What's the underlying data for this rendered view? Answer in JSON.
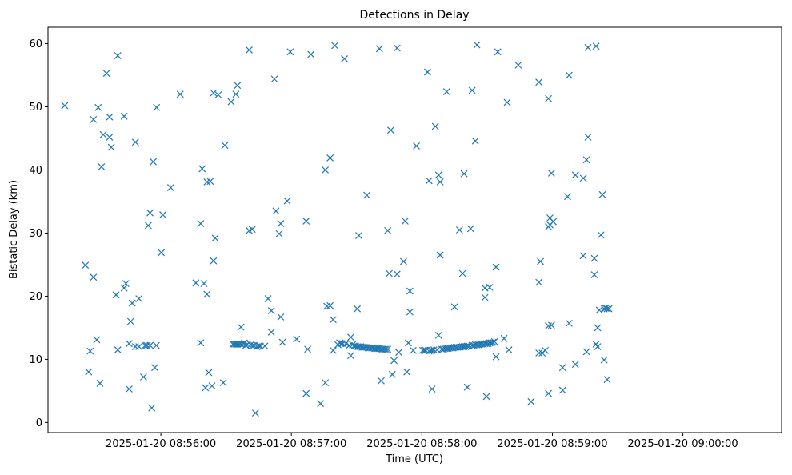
{
  "chart_data": {
    "type": "scatter",
    "title": "Detections in Delay",
    "xlabel": "Time (UTC)",
    "ylabel": "Bistatic Delay (km)",
    "grid": false,
    "legend": "none",
    "marker": "x",
    "color": "#1f77b4",
    "x_tick_labels": [
      "2025-01-20 08:56:00",
      "2025-01-20 08:57:00",
      "2025-01-20 08:58:00",
      "2025-01-20 08:59:00",
      "2025-01-20 09:00:00"
    ],
    "x_ticks": [
      "2025-01-20T08:56:00",
      "2025-01-20T08:57:00",
      "2025-01-20T08:58:00",
      "2025-01-20T08:59:00",
      "2025-01-20T09:00:00"
    ],
    "y_ticks": [
      0,
      10,
      20,
      30,
      40,
      50,
      60
    ],
    "xlim": [
      "2025-01-20T08:55:08.1",
      "2025-01-20T09:00:45.4"
    ],
    "ylim": [
      -1.6,
      62.6
    ],
    "points": [
      [
        "2025-01-20T08:55:15.8",
        50.2
      ],
      [
        "2025-01-20T08:55:25.3",
        24.9
      ],
      [
        "2025-01-20T08:55:26.8",
        8.0
      ],
      [
        "2025-01-20T08:55:27.5",
        11.3
      ],
      [
        "2025-01-20T08:55:29.0",
        48.0
      ],
      [
        "2025-01-20T08:55:29.0",
        23.0
      ],
      [
        "2025-01-20T08:55:30.5",
        13.1
      ],
      [
        "2025-01-20T08:55:31.2",
        49.9
      ],
      [
        "2025-01-20T08:55:32.0",
        6.2
      ],
      [
        "2025-01-20T08:55:32.7",
        40.5
      ],
      [
        "2025-01-20T08:55:33.5",
        45.6
      ],
      [
        "2025-01-20T08:55:35.0",
        55.3
      ],
      [
        "2025-01-20T08:55:36.4",
        48.4
      ],
      [
        "2025-01-20T08:55:36.4",
        45.2
      ],
      [
        "2025-01-20T08:55:37.2",
        43.6
      ],
      [
        "2025-01-20T08:55:39.4",
        20.2
      ],
      [
        "2025-01-20T08:55:40.2",
        58.1
      ],
      [
        "2025-01-20T08:55:40.2",
        11.5
      ],
      [
        "2025-01-20T08:55:43.1",
        48.5
      ],
      [
        "2025-01-20T08:55:43.1",
        21.3
      ],
      [
        "2025-01-20T08:55:43.9",
        22.0
      ],
      [
        "2025-01-20T08:55:45.4",
        5.3
      ],
      [
        "2025-01-20T08:55:45.4",
        12.5
      ],
      [
        "2025-01-20T08:55:46.1",
        16.0
      ],
      [
        "2025-01-20T08:55:46.8",
        18.9
      ],
      [
        "2025-01-20T08:55:48.3",
        44.4
      ],
      [
        "2025-01-20T08:55:48.3",
        12.0
      ],
      [
        "2025-01-20T08:55:49.9",
        19.6
      ],
      [
        "2025-01-20T08:55:49.9",
        12.0
      ],
      [
        "2025-01-20T08:55:52.0",
        7.2
      ],
      [
        "2025-01-20T08:55:52.8",
        12.2
      ],
      [
        "2025-01-20T08:55:53.5",
        12.2
      ],
      [
        "2025-01-20T08:55:54.2",
        31.2
      ],
      [
        "2025-01-20T08:55:55.0",
        33.2
      ],
      [
        "2025-01-20T08:55:55.0",
        12.2
      ],
      [
        "2025-01-20T08:55:55.8",
        2.3
      ],
      [
        "2025-01-20T08:55:56.5",
        41.3
      ],
      [
        "2025-01-20T08:55:57.2",
        8.7
      ],
      [
        "2025-01-20T08:55:57.9",
        12.2
      ],
      [
        "2025-01-20T08:55:58.0",
        49.9
      ],
      [
        "2025-01-20T08:56:00.2",
        26.9
      ],
      [
        "2025-01-20T08:56:00.9",
        32.9
      ],
      [
        "2025-01-20T08:56:04.5",
        37.2
      ],
      [
        "2025-01-20T08:56:08.9",
        52.0
      ],
      [
        "2025-01-20T08:56:16.1",
        22.1
      ],
      [
        "2025-01-20T08:56:18.3",
        31.5
      ],
      [
        "2025-01-20T08:56:18.3",
        12.6
      ],
      [
        "2025-01-20T08:56:19.0",
        40.2
      ],
      [
        "2025-01-20T08:56:19.8",
        22.0
      ],
      [
        "2025-01-20T08:56:20.5",
        5.5
      ],
      [
        "2025-01-20T08:56:21.2",
        38.1
      ],
      [
        "2025-01-20T08:56:21.2",
        20.3
      ],
      [
        "2025-01-20T08:56:22.0",
        7.9
      ],
      [
        "2025-01-20T08:56:22.7",
        38.2
      ],
      [
        "2025-01-20T08:56:23.5",
        5.8
      ],
      [
        "2025-01-20T08:56:24.2",
        52.2
      ],
      [
        "2025-01-20T08:56:24.2",
        25.6
      ],
      [
        "2025-01-20T08:56:25.0",
        29.2
      ],
      [
        "2025-01-20T08:56:26.4",
        51.9
      ],
      [
        "2025-01-20T08:56:28.7",
        6.3
      ],
      [
        "2025-01-20T08:56:29.4",
        43.9
      ],
      [
        "2025-01-20T08:56:32.3",
        50.8
      ],
      [
        "2025-01-20T08:56:33.1",
        12.4
      ],
      [
        "2025-01-20T08:56:33.8",
        12.4
      ],
      [
        "2025-01-20T08:56:34.5",
        52.0
      ],
      [
        "2025-01-20T08:56:34.5",
        12.4
      ],
      [
        "2025-01-20T08:56:35.2",
        53.4
      ],
      [
        "2025-01-20T08:56:35.2",
        12.4
      ],
      [
        "2025-01-20T08:56:36.0",
        12.4
      ],
      [
        "2025-01-20T08:56:36.8",
        12.4
      ],
      [
        "2025-01-20T08:56:36.8",
        15.1
      ],
      [
        "2025-01-20T08:56:37.6",
        12.4
      ],
      [
        "2025-01-20T08:56:38.4",
        12.6
      ],
      [
        "2025-01-20T08:56:39.1",
        12.2
      ],
      [
        "2025-01-20T08:56:39.8",
        12.4
      ],
      [
        "2025-01-20T08:56:40.6",
        59.0
      ],
      [
        "2025-01-20T08:56:40.6",
        30.4
      ],
      [
        "2025-01-20T08:56:41.3",
        12.3
      ],
      [
        "2025-01-20T08:56:42.0",
        30.6
      ],
      [
        "2025-01-20T08:56:42.0",
        12.2
      ],
      [
        "2025-01-20T08:56:42.8",
        12.2
      ],
      [
        "2025-01-20T08:56:43.5",
        1.5
      ],
      [
        "2025-01-20T08:56:44.2",
        12.0
      ],
      [
        "2025-01-20T08:56:45.0",
        12.1
      ],
      [
        "2025-01-20T08:56:45.7",
        12.1
      ],
      [
        "2025-01-20T08:56:47.8",
        12.1
      ],
      [
        "2025-01-20T08:56:49.3",
        19.6
      ],
      [
        "2025-01-20T08:56:50.8",
        17.7
      ],
      [
        "2025-01-20T08:56:50.8",
        14.3
      ],
      [
        "2025-01-20T08:56:52.2",
        54.4
      ],
      [
        "2025-01-20T08:56:52.9",
        33.5
      ],
      [
        "2025-01-20T08:56:54.4",
        29.9
      ],
      [
        "2025-01-20T08:56:55.1",
        31.5
      ],
      [
        "2025-01-20T08:56:55.1",
        16.7
      ],
      [
        "2025-01-20T08:56:55.9",
        12.7
      ],
      [
        "2025-01-20T08:56:58.1",
        35.1
      ],
      [
        "2025-01-20T08:56:59.5",
        58.7
      ],
      [
        "2025-01-20T08:57:02.4",
        13.2
      ],
      [
        "2025-01-20T08:57:06.8",
        31.9
      ],
      [
        "2025-01-20T08:57:06.8",
        4.6
      ],
      [
        "2025-01-20T08:57:07.5",
        11.6
      ],
      [
        "2025-01-20T08:57:09.0",
        58.3
      ],
      [
        "2025-01-20T08:57:13.4",
        3.0
      ],
      [
        "2025-01-20T08:57:15.6",
        40.0
      ],
      [
        "2025-01-20T08:57:15.6",
        6.3
      ],
      [
        "2025-01-20T08:57:16.3",
        18.4
      ],
      [
        "2025-01-20T08:57:17.8",
        41.9
      ],
      [
        "2025-01-20T08:57:17.8",
        18.5
      ],
      [
        "2025-01-20T08:57:19.2",
        16.3
      ],
      [
        "2025-01-20T08:57:19.2",
        11.4
      ],
      [
        "2025-01-20T08:57:20.0",
        59.7
      ],
      [
        "2025-01-20T08:57:21.4",
        12.3
      ],
      [
        "2025-01-20T08:57:22.2",
        12.6
      ],
      [
        "2025-01-20T08:57:22.9",
        12.5
      ],
      [
        "2025-01-20T08:57:23.6",
        12.5
      ],
      [
        "2025-01-20T08:57:24.4",
        57.6
      ],
      [
        "2025-01-20T08:57:25.1",
        12.5
      ],
      [
        "2025-01-20T08:57:26.6",
        12.2
      ],
      [
        "2025-01-20T08:57:27.3",
        13.5
      ],
      [
        "2025-01-20T08:57:27.3",
        10.6
      ],
      [
        "2025-01-20T08:57:28.1",
        12.3
      ],
      [
        "2025-01-20T08:57:28.8",
        12.1
      ],
      [
        "2025-01-20T08:57:29.5",
        12.1
      ],
      [
        "2025-01-20T08:57:30.3",
        12.0
      ],
      [
        "2025-01-20T08:57:30.3",
        18.0
      ],
      [
        "2025-01-20T08:57:31.0",
        29.6
      ],
      [
        "2025-01-20T08:57:31.0",
        12.0
      ],
      [
        "2025-01-20T08:57:31.8",
        12.0
      ],
      [
        "2025-01-20T08:57:32.5",
        11.9
      ],
      [
        "2025-01-20T08:57:33.2",
        11.9
      ],
      [
        "2025-01-20T08:57:33.9",
        11.9
      ],
      [
        "2025-01-20T08:57:34.7",
        36.0
      ],
      [
        "2025-01-20T08:57:34.7",
        11.9
      ],
      [
        "2025-01-20T08:57:35.4",
        11.8
      ],
      [
        "2025-01-20T08:57:36.1",
        11.8
      ],
      [
        "2025-01-20T08:57:36.9",
        11.8
      ],
      [
        "2025-01-20T08:57:37.6",
        11.8
      ],
      [
        "2025-01-20T08:57:38.4",
        11.7
      ],
      [
        "2025-01-20T08:57:39.1",
        11.7
      ],
      [
        "2025-01-20T08:57:39.8",
        11.7
      ],
      [
        "2025-01-20T08:57:40.5",
        59.2
      ],
      [
        "2025-01-20T08:57:40.5",
        11.7
      ],
      [
        "2025-01-20T08:57:41.3",
        11.6
      ],
      [
        "2025-01-20T08:57:41.3",
        6.6
      ],
      [
        "2025-01-20T08:57:42.0",
        11.6
      ],
      [
        "2025-01-20T08:57:42.8",
        11.6
      ],
      [
        "2025-01-20T08:57:43.5",
        11.6
      ],
      [
        "2025-01-20T08:57:44.3",
        30.4
      ],
      [
        "2025-01-20T08:57:44.3",
        11.6
      ],
      [
        "2025-01-20T08:57:45.0",
        23.6
      ],
      [
        "2025-01-20T08:57:45.7",
        46.3
      ],
      [
        "2025-01-20T08:57:46.4",
        7.6
      ],
      [
        "2025-01-20T08:57:47.2",
        9.8
      ],
      [
        "2025-01-20T08:57:48.6",
        59.3
      ],
      [
        "2025-01-20T08:57:48.6",
        23.5
      ],
      [
        "2025-01-20T08:57:49.4",
        11.1
      ],
      [
        "2025-01-20T08:57:51.6",
        25.5
      ],
      [
        "2025-01-20T08:57:52.3",
        31.9
      ],
      [
        "2025-01-20T08:57:53.1",
        8.0
      ],
      [
        "2025-01-20T08:57:53.8",
        12.6
      ],
      [
        "2025-01-20T08:57:54.5",
        20.8
      ],
      [
        "2025-01-20T08:57:54.5",
        17.5
      ],
      [
        "2025-01-20T08:57:56.0",
        11.4
      ],
      [
        "2025-01-20T08:57:57.5",
        43.8
      ],
      [
        "2025-01-20T08:58:00.4",
        11.4
      ],
      [
        "2025-01-20T08:58:01.1",
        11.4
      ],
      [
        "2025-01-20T08:58:01.8",
        11.4
      ],
      [
        "2025-01-20T08:58:02.6",
        55.5
      ],
      [
        "2025-01-20T08:58:03.3",
        11.3
      ],
      [
        "2025-01-20T08:58:03.3",
        38.3
      ],
      [
        "2025-01-20T08:58:04.0",
        11.4
      ],
      [
        "2025-01-20T08:58:04.7",
        11.4
      ],
      [
        "2025-01-20T08:58:04.7",
        5.3
      ],
      [
        "2025-01-20T08:58:05.5",
        11.5
      ],
      [
        "2025-01-20T08:58:06.2",
        46.9
      ],
      [
        "2025-01-20T08:58:07.0",
        11.5
      ],
      [
        "2025-01-20T08:58:07.7",
        13.8
      ],
      [
        "2025-01-20T08:58:07.7",
        39.2
      ],
      [
        "2025-01-20T08:58:08.4",
        38.1
      ],
      [
        "2025-01-20T08:58:08.4",
        26.5
      ],
      [
        "2025-01-20T08:58:09.2",
        11.6
      ],
      [
        "2025-01-20T08:58:09.9",
        11.6
      ],
      [
        "2025-01-20T08:58:10.6",
        11.7
      ],
      [
        "2025-01-20T08:58:11.4",
        52.4
      ],
      [
        "2025-01-20T08:58:11.4",
        11.7
      ],
      [
        "2025-01-20T08:58:12.1",
        11.7
      ],
      [
        "2025-01-20T08:58:12.8",
        11.8
      ],
      [
        "2025-01-20T08:58:13.6",
        11.8
      ],
      [
        "2025-01-20T08:58:14.3",
        11.8
      ],
      [
        "2025-01-20T08:58:15.0",
        11.9
      ],
      [
        "2025-01-20T08:58:15.0",
        18.3
      ],
      [
        "2025-01-20T08:58:15.8",
        11.9
      ],
      [
        "2025-01-20T08:58:16.5",
        11.9
      ],
      [
        "2025-01-20T08:58:17.3",
        30.5
      ],
      [
        "2025-01-20T08:58:17.3",
        11.9
      ],
      [
        "2025-01-20T08:58:18.0",
        12.0
      ],
      [
        "2025-01-20T08:58:18.7",
        23.6
      ],
      [
        "2025-01-20T08:58:18.7",
        12.0
      ],
      [
        "2025-01-20T08:58:19.4",
        39.4
      ],
      [
        "2025-01-20T08:58:19.4",
        12.0
      ],
      [
        "2025-01-20T08:58:20.2",
        12.0
      ],
      [
        "2025-01-20T08:58:20.9",
        5.6
      ],
      [
        "2025-01-20T08:58:20.9",
        12.1
      ],
      [
        "2025-01-20T08:58:21.7",
        12.1
      ],
      [
        "2025-01-20T08:58:22.4",
        30.7
      ],
      [
        "2025-01-20T08:58:23.1",
        52.6
      ],
      [
        "2025-01-20T08:58:23.1",
        12.2
      ],
      [
        "2025-01-20T08:58:23.9",
        12.2
      ],
      [
        "2025-01-20T08:58:24.6",
        44.6
      ],
      [
        "2025-01-20T08:58:24.6",
        12.3
      ],
      [
        "2025-01-20T08:58:25.3",
        59.8
      ],
      [
        "2025-01-20T08:58:25.3",
        12.3
      ],
      [
        "2025-01-20T08:58:26.1",
        12.3
      ],
      [
        "2025-01-20T08:58:26.8",
        12.4
      ],
      [
        "2025-01-20T08:58:27.5",
        12.4
      ],
      [
        "2025-01-20T08:58:28.3",
        12.4
      ],
      [
        "2025-01-20T08:58:29.0",
        21.3
      ],
      [
        "2025-01-20T08:58:29.0",
        19.8
      ],
      [
        "2025-01-20T08:58:29.0",
        12.5
      ],
      [
        "2025-01-20T08:58:29.7",
        4.1
      ],
      [
        "2025-01-20T08:58:29.7",
        12.5
      ],
      [
        "2025-01-20T08:58:30.5",
        12.5
      ],
      [
        "2025-01-20T08:58:31.2",
        21.4
      ],
      [
        "2025-01-20T08:58:31.2",
        12.6
      ],
      [
        "2025-01-20T08:58:31.9",
        12.6
      ],
      [
        "2025-01-20T08:58:32.7",
        12.7
      ],
      [
        "2025-01-20T08:58:33.4",
        12.8
      ],
      [
        "2025-01-20T08:58:34.1",
        24.6
      ],
      [
        "2025-01-20T08:58:34.1",
        10.4
      ],
      [
        "2025-01-20T08:58:34.9",
        58.7
      ],
      [
        "2025-01-20T08:58:37.8",
        13.3
      ],
      [
        "2025-01-20T08:58:39.2",
        50.7
      ],
      [
        "2025-01-20T08:58:40.0",
        11.5
      ],
      [
        "2025-01-20T08:58:44.3",
        56.6
      ],
      [
        "2025-01-20T08:58:50.2",
        3.3
      ],
      [
        "2025-01-20T08:58:53.8",
        53.9
      ],
      [
        "2025-01-20T08:58:53.8",
        22.2
      ],
      [
        "2025-01-20T08:58:53.8",
        11.0
      ],
      [
        "2025-01-20T08:58:54.5",
        25.5
      ],
      [
        "2025-01-20T08:58:55.3",
        11.0
      ],
      [
        "2025-01-20T08:58:56.7",
        11.4
      ],
      [
        "2025-01-20T08:58:58.2",
        51.3
      ],
      [
        "2025-01-20T08:58:58.2",
        31.0
      ],
      [
        "2025-01-20T08:58:58.2",
        15.3
      ],
      [
        "2025-01-20T08:58:58.2",
        4.6
      ],
      [
        "2025-01-20T08:58:58.9",
        32.4
      ],
      [
        "2025-01-20T08:58:58.9",
        31.3
      ],
      [
        "2025-01-20T08:58:59.6",
        39.5
      ],
      [
        "2025-01-20T08:58:59.6",
        15.4
      ],
      [
        "2025-01-20T08:59:00.4",
        31.8
      ],
      [
        "2025-01-20T08:59:04.7",
        5.1
      ],
      [
        "2025-01-20T08:59:04.7",
        8.7
      ],
      [
        "2025-01-20T08:59:07.0",
        35.8
      ],
      [
        "2025-01-20T08:59:07.7",
        55.0
      ],
      [
        "2025-01-20T08:59:07.7",
        15.7
      ],
      [
        "2025-01-20T08:59:10.6",
        39.2
      ],
      [
        "2025-01-20T08:59:10.6",
        9.2
      ],
      [
        "2025-01-20T08:59:14.2",
        38.7
      ],
      [
        "2025-01-20T08:59:14.2",
        26.4
      ],
      [
        "2025-01-20T08:59:15.7",
        41.6
      ],
      [
        "2025-01-20T08:59:15.7",
        11.2
      ],
      [
        "2025-01-20T08:59:16.4",
        59.4
      ],
      [
        "2025-01-20T08:59:16.4",
        45.2
      ],
      [
        "2025-01-20T08:59:19.3",
        26.0
      ],
      [
        "2025-01-20T08:59:19.3",
        23.4
      ],
      [
        "2025-01-20T08:59:20.1",
        59.6
      ],
      [
        "2025-01-20T08:59:20.1",
        12.4
      ],
      [
        "2025-01-20T08:59:20.8",
        15.0
      ],
      [
        "2025-01-20T08:59:20.8",
        12.0
      ],
      [
        "2025-01-20T08:59:21.6",
        17.8
      ],
      [
        "2025-01-20T08:59:22.3",
        29.7
      ],
      [
        "2025-01-20T08:59:23.0",
        36.1
      ],
      [
        "2025-01-20T08:59:23.8",
        18.0
      ],
      [
        "2025-01-20T08:59:23.8",
        9.9
      ],
      [
        "2025-01-20T08:59:24.5",
        18.1
      ],
      [
        "2025-01-20T08:59:25.2",
        18.0
      ],
      [
        "2025-01-20T08:59:25.2",
        6.8
      ],
      [
        "2025-01-20T08:59:26.0",
        18.0
      ]
    ]
  }
}
